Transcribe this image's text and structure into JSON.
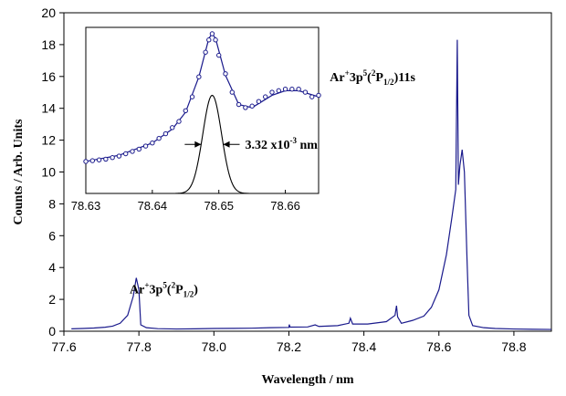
{
  "chart_data": [
    {
      "type": "line",
      "role": "main",
      "xlabel": "Wavelength / nm",
      "ylabel": "Counts / Arb. Units",
      "xlim": [
        77.6,
        78.9
      ],
      "ylim": [
        0,
        20
      ],
      "x_ticks": [
        77.6,
        77.8,
        78.0,
        78.2,
        78.4,
        78.6,
        78.8
      ],
      "x_tick_labels": [
        "77.6",
        "77.8",
        "78.0",
        "78.2",
        "78.4",
        "78.6",
        "78.8"
      ],
      "y_ticks": [
        0,
        2,
        4,
        6,
        8,
        10,
        12,
        14,
        16,
        18,
        20
      ],
      "y_tick_labels": [
        "0",
        "2",
        "4",
        "6",
        "8",
        "10",
        "12",
        "14",
        "16",
        "18",
        "20"
      ],
      "series": [
        {
          "name": "spectrum",
          "color": "#1a1a8c",
          "points": [
            [
              77.62,
              0.15
            ],
            [
              77.65,
              0.17
            ],
            [
              77.68,
              0.2
            ],
            [
              77.71,
              0.25
            ],
            [
              77.73,
              0.32
            ],
            [
              77.75,
              0.5
            ],
            [
              77.77,
              1.0
            ],
            [
              77.785,
              2.2
            ],
            [
              77.793,
              3.35
            ],
            [
              77.8,
              2.6
            ],
            [
              77.805,
              0.4
            ],
            [
              77.82,
              0.22
            ],
            [
              77.85,
              0.16
            ],
            [
              77.9,
              0.14
            ],
            [
              77.95,
              0.15
            ],
            [
              78.0,
              0.17
            ],
            [
              78.05,
              0.18
            ],
            [
              78.1,
              0.19
            ],
            [
              78.15,
              0.22
            ],
            [
              78.2,
              0.24
            ],
            [
              78.201,
              0.42
            ],
            [
              78.203,
              0.26
            ],
            [
              78.25,
              0.27
            ],
            [
              78.27,
              0.4
            ],
            [
              78.28,
              0.3
            ],
            [
              78.33,
              0.35
            ],
            [
              78.36,
              0.5
            ],
            [
              78.364,
              0.82
            ],
            [
              78.37,
              0.45
            ],
            [
              78.41,
              0.45
            ],
            [
              78.46,
              0.6
            ],
            [
              78.483,
              1.0
            ],
            [
              78.487,
              1.6
            ],
            [
              78.49,
              0.9
            ],
            [
              78.5,
              0.5
            ],
            [
              78.53,
              0.68
            ],
            [
              78.56,
              0.95
            ],
            [
              78.58,
              1.5
            ],
            [
              78.6,
              2.6
            ],
            [
              78.62,
              4.8
            ],
            [
              78.635,
              7.2
            ],
            [
              78.645,
              8.9
            ],
            [
              78.649,
              18.3
            ],
            [
              78.652,
              9.2
            ],
            [
              78.656,
              10.4
            ],
            [
              78.662,
              11.4
            ],
            [
              78.668,
              10.0
            ],
            [
              78.675,
              4.5
            ],
            [
              78.68,
              1.0
            ],
            [
              78.69,
              0.35
            ],
            [
              78.72,
              0.22
            ],
            [
              78.75,
              0.17
            ],
            [
              78.8,
              0.14
            ],
            [
              78.85,
              0.12
            ],
            [
              78.9,
              0.11
            ]
          ]
        }
      ],
      "annotations": [
        {
          "text_parts": [
            "Ar",
            "+",
            "3p",
            "5",
            "(",
            "2",
            "P",
            "1/2",
            ")"
          ],
          "near_x": 77.79,
          "near_y": 3.4
        },
        {
          "text_parts": [
            "Ar",
            "+",
            "3p",
            "5",
            "(",
            "2",
            "P",
            "1/2",
            ")11s"
          ],
          "near_x": 78.65,
          "near_y": 15.7
        }
      ]
    },
    {
      "type": "scatter",
      "role": "inset",
      "xlim": [
        78.63,
        78.665
      ],
      "ylim": [
        0,
        20
      ],
      "x_ticks": [
        78.63,
        78.64,
        78.65,
        78.66
      ],
      "x_tick_labels": [
        "78.63",
        "78.64",
        "78.65",
        "78.66"
      ],
      "series": [
        {
          "name": "measured",
          "marker": "open-circle",
          "color": "#1a1a8c",
          "points": [
            [
              78.63,
              10.3
            ],
            [
              78.631,
              10.35
            ],
            [
              78.632,
              10.4
            ],
            [
              78.633,
              10.45
            ],
            [
              78.634,
              10.55
            ],
            [
              78.635,
              10.65
            ],
            [
              78.636,
              10.8
            ],
            [
              78.637,
              10.95
            ],
            [
              78.638,
              11.1
            ],
            [
              78.639,
              11.3
            ],
            [
              78.64,
              11.5
            ],
            [
              78.641,
              11.8
            ],
            [
              78.642,
              12.1
            ],
            [
              78.643,
              12.5
            ],
            [
              78.644,
              12.9
            ],
            [
              78.645,
              13.6
            ],
            [
              78.646,
              14.5
            ],
            [
              78.647,
              15.8
            ],
            [
              78.648,
              17.4
            ],
            [
              78.6485,
              18.2
            ],
            [
              78.649,
              18.6
            ],
            [
              78.6495,
              18.2
            ],
            [
              78.65,
              17.2
            ],
            [
              78.651,
              16.0
            ],
            [
              78.652,
              14.8
            ],
            [
              78.653,
              14.0
            ],
            [
              78.654,
              13.8
            ],
            [
              78.655,
              13.9
            ],
            [
              78.656,
              14.2
            ],
            [
              78.657,
              14.5
            ],
            [
              78.658,
              14.8
            ],
            [
              78.659,
              14.9
            ],
            [
              78.66,
              15.0
            ],
            [
              78.661,
              15.0
            ],
            [
              78.662,
              15.0
            ],
            [
              78.663,
              14.8
            ],
            [
              78.664,
              14.5
            ],
            [
              78.665,
              14.6
            ]
          ]
        },
        {
          "name": "fit-sum",
          "line_color": "#1a1a8c",
          "points": [
            [
              78.63,
              10.3
            ],
            [
              78.635,
              10.7
            ],
            [
              78.64,
              11.5
            ],
            [
              78.643,
              12.4
            ],
            [
              78.645,
              13.5
            ],
            [
              78.647,
              15.8
            ],
            [
              78.6485,
              18.3
            ],
            [
              78.649,
              18.6
            ],
            [
              78.6495,
              18.3
            ],
            [
              78.651,
              15.9
            ],
            [
              78.653,
              14.0
            ],
            [
              78.655,
              13.8
            ],
            [
              78.658,
              14.6
            ],
            [
              78.66,
              14.9
            ],
            [
              78.662,
              14.9
            ],
            [
              78.665,
              14.5
            ]
          ]
        },
        {
          "name": "fit-gaussian",
          "line_color": "#000000",
          "center": 78.649,
          "amplitude": 14.6,
          "fwhm": 0.00332
        }
      ],
      "annotations": [
        {
          "text_parts": [
            "3.32 x10",
            "-3",
            " nm"
          ],
          "near_x": 78.652,
          "near_y": 11.4,
          "arrows": true
        }
      ]
    }
  ]
}
